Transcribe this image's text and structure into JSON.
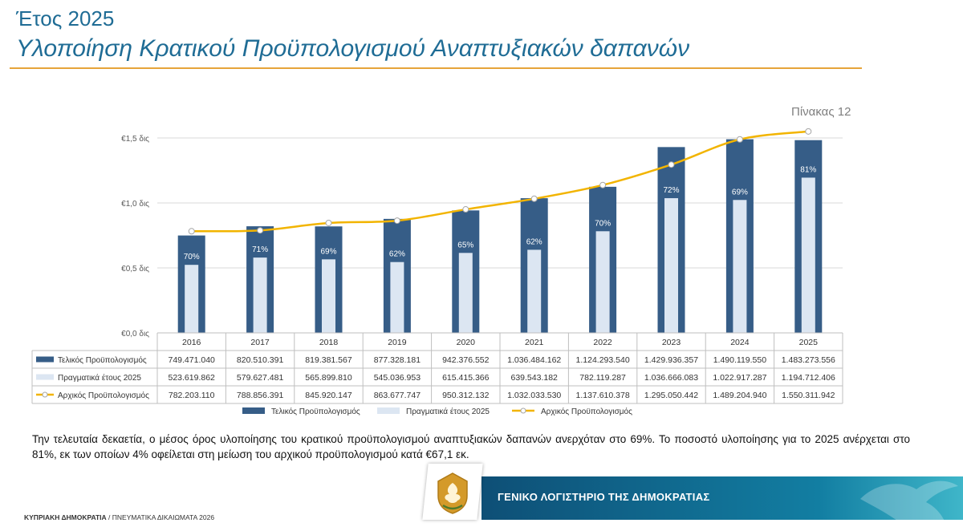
{
  "header": {
    "year_title": "Έτος 2025",
    "main_title": "Υλοποίηση Κρατικού Προϋπολογισμού Αναπτυξιακών δαπανών"
  },
  "table_label": "Πίνακας 12",
  "summary_text": "Την τελευταία δεκαετία, ο μέσος όρος υλοποίησης του κρατικού προϋπολογισμού αναπτυξιακών δαπανών ανερχόταν στο 69%. Το ποσοστό υλοποίησης για το 2025 ανέρχεται στο 81%, εκ των οποίων 4% οφείλεται στη μείωση του αρχικού προϋπολογισμού κατά €67,1 εκ.",
  "footer": {
    "left_bold": "ΚΥΠΡΙΑΚΗ ΔΗΜΟΚΡΑΤΙΑ",
    "left_rest": " / ΠΝΕΥΜΑΤΙΚΑ ΔΙΚΑΙΩΜΑΤΑ 2026",
    "band_text": "ΓΕΝΙΚΟ ΛΟΓΙΣΤΗΡΙΟ ΤΗΣ ΔΗΜΟΚΡΑΤΙΑΣ"
  },
  "colors": {
    "final_budget": "#365d87",
    "actual": "#dce6f2",
    "initial_line": "#f2b400",
    "title": "#1f6c95",
    "rule": "#e6a43a"
  },
  "chart_data": {
    "type": "bar",
    "categories": [
      "2016",
      "2017",
      "2018",
      "2019",
      "2020",
      "2021",
      "2022",
      "2023",
      "2024",
      "2025"
    ],
    "ylim": [
      0,
      1500000000
    ],
    "yticks": [
      {
        "value": 0,
        "label": "€0,0 δις"
      },
      {
        "value": 500000000,
        "label": "€0,5 δις"
      },
      {
        "value": 1000000000,
        "label": "€1,0 δις"
      },
      {
        "value": 1500000000,
        "label": "€1,5 δις"
      }
    ],
    "grid": true,
    "legend_position": "bottom",
    "series": [
      {
        "name": "Τελικός Προϋπολογισμός",
        "kind": "bar",
        "color": "#365d87",
        "values": [
          749471040,
          820510391,
          819381567,
          877328181,
          942376552,
          1036484162,
          1124293540,
          1429936357,
          1490119550,
          1483273556
        ],
        "labels": [
          "749.471.040",
          "820.510.391",
          "819.381.567",
          "877.328.181",
          "942.376.552",
          "1.036.484.162",
          "1.124.293.540",
          "1.429.936.357",
          "1.490.119.550",
          "1.483.273.556"
        ]
      },
      {
        "name": "Πραγματικά έτους 2025",
        "kind": "bar",
        "color": "#dce6f2",
        "values": [
          523619862,
          579627481,
          565899810,
          545036953,
          615415366,
          639543182,
          782119287,
          1036666083,
          1022917287,
          1194712406
        ],
        "labels": [
          "523.619.862",
          "579.627.481",
          "565.899.810",
          "545.036.953",
          "615.415.366",
          "639.543.182",
          "782.119.287",
          "1.036.666.083",
          "1.022.917.287",
          "1.194.712.406"
        ]
      },
      {
        "name": "Αρχικός Προϋπολογισμός",
        "kind": "line",
        "color": "#f2b400",
        "values": [
          782203110,
          788856391,
          845920147,
          863677747,
          950312132,
          1032033530,
          1137610378,
          1295050442,
          1489204940,
          1550311942
        ],
        "labels": [
          "782.203.110",
          "788.856.391",
          "845.920.147",
          "863.677.747",
          "950.312.132",
          "1.032.033.530",
          "1.137.610.378",
          "1.295.050.442",
          "1.489.204.940",
          "1.550.311.942"
        ]
      }
    ],
    "percent_labels": [
      "70%",
      "71%",
      "69%",
      "62%",
      "65%",
      "62%",
      "70%",
      "72%",
      "69%",
      "81%"
    ]
  }
}
